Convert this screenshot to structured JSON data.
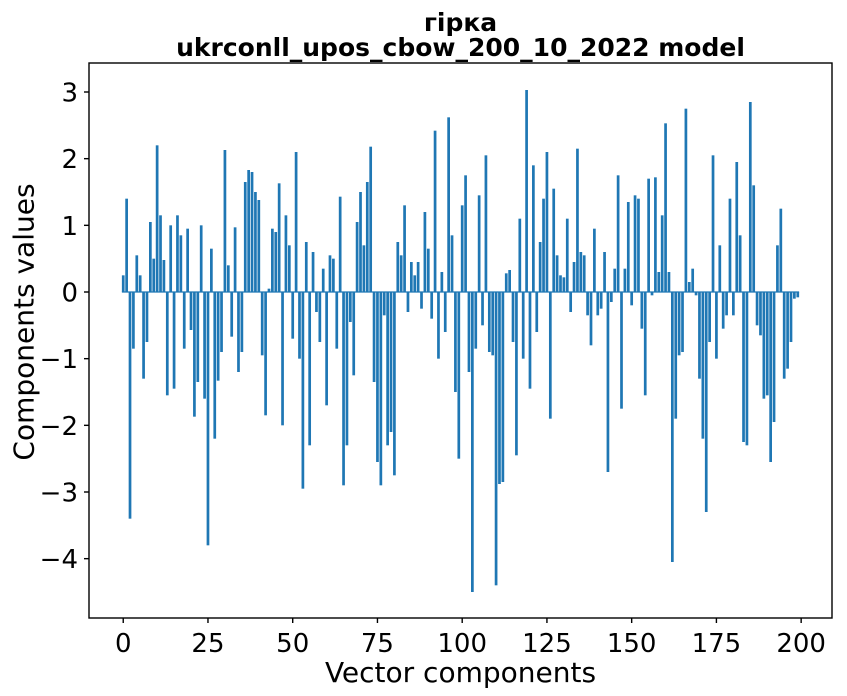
{
  "chart_data": {
    "type": "bar",
    "title_line1": "гірка",
    "title_line2": "ukrconll_upos_cbow_200_10_2022 model",
    "xlabel": "Vector components",
    "ylabel": "Components values",
    "bar_color": "#1f77b4",
    "spine_color": "#000000",
    "text_color": "#000000",
    "bar_width": 0.8,
    "grid": false,
    "legend_position": "none",
    "xticks": [
      0,
      25,
      50,
      75,
      100,
      125,
      150,
      175,
      200
    ],
    "yticks": [
      3,
      2,
      1,
      0,
      -1,
      -2,
      -3,
      -4
    ],
    "xlim": [
      -10.1,
      209.1
    ],
    "ylim": [
      -4.89,
      3.435
    ],
    "x_start": 0,
    "values": [
      0.25,
      1.4,
      -3.4,
      -0.85,
      0.55,
      0.25,
      -1.3,
      -0.75,
      1.05,
      0.5,
      2.2,
      1.15,
      0.48,
      -1.55,
      1.0,
      -1.45,
      1.15,
      0.85,
      -0.85,
      0.95,
      -0.57,
      -1.87,
      -1.35,
      1.0,
      -1.6,
      -3.8,
      0.65,
      -2.2,
      -1.33,
      -0.9,
      2.13,
      0.4,
      -0.67,
      0.97,
      -1.2,
      -0.9,
      1.65,
      1.83,
      1.8,
      1.5,
      1.38,
      -0.95,
      -1.85,
      0.05,
      0.95,
      0.9,
      1.63,
      -2.0,
      1.15,
      0.7,
      -0.7,
      2.1,
      -1.0,
      -2.95,
      0.75,
      -2.3,
      0.6,
      -0.3,
      -0.75,
      0.35,
      -1.7,
      0.55,
      0.5,
      -0.85,
      1.43,
      -2.9,
      -2.3,
      -0.45,
      -1.25,
      1.05,
      1.5,
      0.7,
      1.65,
      2.18,
      -1.35,
      -2.55,
      -2.9,
      -0.35,
      -2.3,
      -2.1,
      -2.75,
      0.75,
      0.55,
      1.3,
      -0.3,
      0.45,
      0.25,
      0.45,
      -0.25,
      1.2,
      0.65,
      -0.4,
      2.42,
      -1.0,
      0.3,
      -0.6,
      2.62,
      0.85,
      -1.5,
      -2.5,
      1.3,
      1.75,
      -1.2,
      -4.5,
      -0.85,
      1.45,
      -0.5,
      2.05,
      -0.9,
      -0.95,
      -4.4,
      -2.88,
      -2.85,
      0.28,
      0.33,
      -0.75,
      -2.45,
      1.1,
      -1.0,
      3.03,
      -1.45,
      1.9,
      -0.6,
      0.75,
      1.4,
      2.1,
      -1.9,
      1.55,
      0.55,
      0.25,
      0.22,
      1.1,
      -0.3,
      0.45,
      2.15,
      0.6,
      0.55,
      -0.35,
      -0.8,
      0.95,
      -0.35,
      -0.25,
      0.6,
      -2.7,
      -0.15,
      0.35,
      1.75,
      -1.75,
      0.35,
      1.35,
      -0.2,
      1.45,
      1.4,
      -0.55,
      -1.55,
      1.7,
      -0.05,
      1.72,
      0.3,
      1.15,
      2.53,
      0.3,
      -4.05,
      -1.9,
      -0.95,
      -0.9,
      2.75,
      0.15,
      0.35,
      -0.05,
      -1.3,
      -2.2,
      -3.3,
      -0.75,
      2.05,
      -1.0,
      0.7,
      -0.55,
      -0.35,
      1.4,
      -0.35,
      1.95,
      0.85,
      -2.25,
      -2.3,
      2.85,
      1.6,
      -0.5,
      -0.65,
      -1.6,
      -1.55,
      -2.55,
      -1.95,
      0.7,
      1.25,
      -1.3,
      -1.15,
      -0.75,
      -0.1,
      -0.08
    ]
  }
}
